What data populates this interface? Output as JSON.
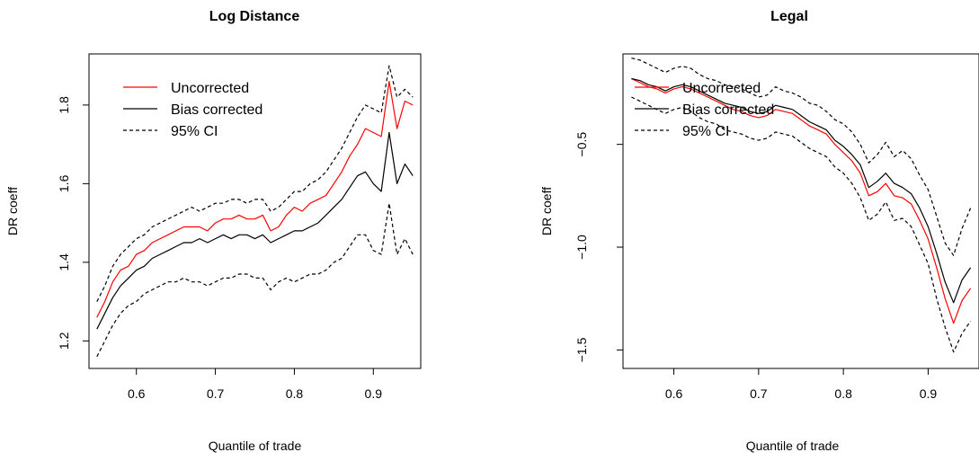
{
  "chart_data": [
    {
      "type": "line",
      "title": "Log Distance",
      "xlabel": "Quantile of trade",
      "ylabel": "DR coeff",
      "xlim": [
        0.54,
        0.96
      ],
      "ylim": [
        1.13,
        1.93
      ],
      "xticks": [
        0.6,
        0.7,
        0.8,
        0.9
      ],
      "xtick_labels": [
        "0.6",
        "0.7",
        "0.8",
        "0.9"
      ],
      "yticks": [
        1.2,
        1.4,
        1.6,
        1.8
      ],
      "ytick_labels": [
        "1.2",
        "1.4",
        "1.6",
        "1.8"
      ],
      "legend": {
        "position": "top-left",
        "entries": [
          {
            "label": "Uncorrected",
            "color": "#ff0000",
            "dash": "solid"
          },
          {
            "label": "Bias corrected",
            "color": "#000000",
            "dash": "solid"
          },
          {
            "label": "95% CI",
            "color": "#000000",
            "dash": "dashed"
          }
        ]
      },
      "series": [
        {
          "name": "Uncorrected",
          "color": "#ff0000",
          "dash": "solid",
          "x": [
            0.55,
            0.56,
            0.57,
            0.58,
            0.59,
            0.6,
            0.61,
            0.62,
            0.63,
            0.64,
            0.65,
            0.66,
            0.67,
            0.68,
            0.69,
            0.7,
            0.71,
            0.72,
            0.73,
            0.74,
            0.75,
            0.76,
            0.77,
            0.78,
            0.79,
            0.8,
            0.81,
            0.82,
            0.83,
            0.84,
            0.85,
            0.86,
            0.87,
            0.88,
            0.89,
            0.9,
            0.91,
            0.92,
            0.93,
            0.94,
            0.95
          ],
          "y": [
            1.26,
            1.3,
            1.35,
            1.38,
            1.39,
            1.42,
            1.43,
            1.45,
            1.46,
            1.47,
            1.48,
            1.49,
            1.49,
            1.49,
            1.48,
            1.5,
            1.51,
            1.51,
            1.52,
            1.51,
            1.51,
            1.52,
            1.48,
            1.49,
            1.52,
            1.54,
            1.53,
            1.55,
            1.56,
            1.57,
            1.6,
            1.63,
            1.67,
            1.7,
            1.74,
            1.73,
            1.72,
            1.86,
            1.74,
            1.81,
            1.8
          ]
        },
        {
          "name": "Bias corrected",
          "color": "#000000",
          "dash": "solid",
          "x": [
            0.55,
            0.56,
            0.57,
            0.58,
            0.59,
            0.6,
            0.61,
            0.62,
            0.63,
            0.64,
            0.65,
            0.66,
            0.67,
            0.68,
            0.69,
            0.7,
            0.71,
            0.72,
            0.73,
            0.74,
            0.75,
            0.76,
            0.77,
            0.78,
            0.79,
            0.8,
            0.81,
            0.82,
            0.83,
            0.84,
            0.85,
            0.86,
            0.87,
            0.88,
            0.89,
            0.9,
            0.91,
            0.92,
            0.93,
            0.94,
            0.95
          ],
          "y": [
            1.23,
            1.27,
            1.31,
            1.34,
            1.36,
            1.38,
            1.39,
            1.41,
            1.42,
            1.43,
            1.44,
            1.45,
            1.45,
            1.46,
            1.45,
            1.46,
            1.47,
            1.46,
            1.47,
            1.47,
            1.46,
            1.47,
            1.45,
            1.46,
            1.47,
            1.48,
            1.48,
            1.49,
            1.5,
            1.52,
            1.54,
            1.56,
            1.59,
            1.62,
            1.63,
            1.6,
            1.58,
            1.73,
            1.6,
            1.65,
            1.62
          ]
        },
        {
          "name": "95% CI",
          "color": "#000000",
          "dash": "dashed",
          "x": [
            0.55,
            0.56,
            0.57,
            0.58,
            0.59,
            0.6,
            0.61,
            0.62,
            0.63,
            0.64,
            0.65,
            0.66,
            0.67,
            0.68,
            0.69,
            0.7,
            0.71,
            0.72,
            0.73,
            0.74,
            0.75,
            0.76,
            0.77,
            0.78,
            0.79,
            0.8,
            0.81,
            0.82,
            0.83,
            0.84,
            0.85,
            0.86,
            0.87,
            0.88,
            0.89,
            0.9,
            0.91,
            0.92,
            0.93,
            0.94,
            0.95
          ],
          "y": [
            1.3,
            1.34,
            1.39,
            1.42,
            1.44,
            1.46,
            1.47,
            1.49,
            1.5,
            1.51,
            1.52,
            1.53,
            1.54,
            1.53,
            1.54,
            1.55,
            1.55,
            1.56,
            1.56,
            1.55,
            1.56,
            1.56,
            1.53,
            1.54,
            1.56,
            1.58,
            1.58,
            1.6,
            1.61,
            1.63,
            1.66,
            1.69,
            1.73,
            1.77,
            1.8,
            1.79,
            1.78,
            1.9,
            1.82,
            1.84,
            1.82
          ]
        },
        {
          "name": "95% CI",
          "color": "#000000",
          "dash": "dashed",
          "x": [
            0.55,
            0.56,
            0.57,
            0.58,
            0.59,
            0.6,
            0.61,
            0.62,
            0.63,
            0.64,
            0.65,
            0.66,
            0.67,
            0.68,
            0.69,
            0.7,
            0.71,
            0.72,
            0.73,
            0.74,
            0.75,
            0.76,
            0.77,
            0.78,
            0.79,
            0.8,
            0.81,
            0.82,
            0.83,
            0.84,
            0.85,
            0.86,
            0.87,
            0.88,
            0.89,
            0.9,
            0.91,
            0.92,
            0.93,
            0.94,
            0.95
          ],
          "y": [
            1.16,
            1.2,
            1.24,
            1.27,
            1.29,
            1.3,
            1.32,
            1.33,
            1.34,
            1.35,
            1.35,
            1.36,
            1.35,
            1.35,
            1.34,
            1.35,
            1.36,
            1.36,
            1.37,
            1.37,
            1.36,
            1.36,
            1.33,
            1.35,
            1.36,
            1.35,
            1.36,
            1.37,
            1.37,
            1.38,
            1.4,
            1.41,
            1.44,
            1.47,
            1.47,
            1.43,
            1.42,
            1.55,
            1.42,
            1.46,
            1.42
          ]
        }
      ]
    },
    {
      "type": "line",
      "title": "Legal",
      "xlabel": "Quantile of trade",
      "ylabel": "DR coeff",
      "xlim": [
        0.54,
        0.96
      ],
      "ylim": [
        -1.59,
        -0.06
      ],
      "xticks": [
        0.6,
        0.7,
        0.8,
        0.9
      ],
      "xtick_labels": [
        "0.6",
        "0.7",
        "0.8",
        "0.9"
      ],
      "yticks": [
        -0.5,
        -1.0,
        -1.5
      ],
      "ytick_labels": [
        "−0.5",
        "−1.0",
        "−1.5"
      ],
      "legend": {
        "position": "top-left",
        "entries": [
          {
            "label": "Uncorrected",
            "color": "#ff0000",
            "dash": "solid"
          },
          {
            "label": "Bias corrected",
            "color": "#000000",
            "dash": "solid"
          },
          {
            "label": "95% CI",
            "color": "#000000",
            "dash": "dashed"
          }
        ]
      },
      "series": [
        {
          "name": "Uncorrected",
          "color": "#ff0000",
          "dash": "solid",
          "x": [
            0.55,
            0.56,
            0.57,
            0.58,
            0.59,
            0.6,
            0.61,
            0.62,
            0.63,
            0.64,
            0.65,
            0.66,
            0.67,
            0.68,
            0.69,
            0.7,
            0.71,
            0.72,
            0.73,
            0.74,
            0.75,
            0.76,
            0.77,
            0.78,
            0.79,
            0.8,
            0.81,
            0.82,
            0.83,
            0.84,
            0.85,
            0.86,
            0.87,
            0.88,
            0.89,
            0.9,
            0.91,
            0.92,
            0.93,
            0.94,
            0.95
          ],
          "y": [
            -0.18,
            -0.2,
            -0.22,
            -0.23,
            -0.25,
            -0.23,
            -0.22,
            -0.23,
            -0.25,
            -0.27,
            -0.29,
            -0.31,
            -0.33,
            -0.34,
            -0.36,
            -0.37,
            -0.36,
            -0.33,
            -0.34,
            -0.35,
            -0.38,
            -0.41,
            -0.43,
            -0.45,
            -0.5,
            -0.54,
            -0.58,
            -0.64,
            -0.75,
            -0.73,
            -0.69,
            -0.75,
            -0.76,
            -0.79,
            -0.87,
            -0.96,
            -1.1,
            -1.25,
            -1.37,
            -1.26,
            -1.2
          ]
        },
        {
          "name": "Bias corrected",
          "color": "#000000",
          "dash": "solid",
          "x": [
            0.55,
            0.56,
            0.57,
            0.58,
            0.59,
            0.6,
            0.61,
            0.62,
            0.63,
            0.64,
            0.65,
            0.66,
            0.67,
            0.68,
            0.69,
            0.7,
            0.71,
            0.72,
            0.73,
            0.74,
            0.75,
            0.76,
            0.77,
            0.78,
            0.79,
            0.8,
            0.81,
            0.82,
            0.83,
            0.84,
            0.85,
            0.86,
            0.87,
            0.88,
            0.89,
            0.9,
            0.91,
            0.92,
            0.93,
            0.94,
            0.95
          ],
          "y": [
            -0.18,
            -0.19,
            -0.21,
            -0.22,
            -0.24,
            -0.22,
            -0.21,
            -0.22,
            -0.24,
            -0.26,
            -0.28,
            -0.3,
            -0.31,
            -0.32,
            -0.34,
            -0.35,
            -0.34,
            -0.31,
            -0.32,
            -0.33,
            -0.36,
            -0.39,
            -0.41,
            -0.43,
            -0.48,
            -0.51,
            -0.55,
            -0.6,
            -0.71,
            -0.68,
            -0.64,
            -0.69,
            -0.71,
            -0.74,
            -0.81,
            -0.9,
            -1.03,
            -1.17,
            -1.27,
            -1.16,
            -1.1
          ]
        },
        {
          "name": "95% CI",
          "color": "#000000",
          "dash": "dashed",
          "x": [
            0.55,
            0.56,
            0.57,
            0.58,
            0.59,
            0.6,
            0.61,
            0.62,
            0.63,
            0.64,
            0.65,
            0.66,
            0.67,
            0.68,
            0.69,
            0.7,
            0.71,
            0.72,
            0.73,
            0.74,
            0.75,
            0.76,
            0.77,
            0.78,
            0.79,
            0.8,
            0.81,
            0.82,
            0.83,
            0.84,
            0.85,
            0.86,
            0.87,
            0.88,
            0.89,
            0.9,
            0.91,
            0.92,
            0.93,
            0.94,
            0.95
          ],
          "y": [
            -0.08,
            -0.09,
            -0.11,
            -0.13,
            -0.15,
            -0.13,
            -0.12,
            -0.13,
            -0.16,
            -0.18,
            -0.19,
            -0.21,
            -0.22,
            -0.23,
            -0.25,
            -0.27,
            -0.26,
            -0.22,
            -0.24,
            -0.25,
            -0.27,
            -0.3,
            -0.31,
            -0.34,
            -0.38,
            -0.4,
            -0.44,
            -0.5,
            -0.59,
            -0.55,
            -0.49,
            -0.56,
            -0.53,
            -0.57,
            -0.65,
            -0.72,
            -0.85,
            -0.98,
            -1.04,
            -0.91,
            -0.81
          ]
        },
        {
          "name": "95% CI",
          "color": "#000000",
          "dash": "dashed",
          "x": [
            0.55,
            0.56,
            0.57,
            0.58,
            0.59,
            0.6,
            0.61,
            0.62,
            0.63,
            0.64,
            0.65,
            0.66,
            0.67,
            0.68,
            0.69,
            0.7,
            0.71,
            0.72,
            0.73,
            0.74,
            0.75,
            0.76,
            0.77,
            0.78,
            0.79,
            0.8,
            0.81,
            0.82,
            0.83,
            0.84,
            0.85,
            0.86,
            0.87,
            0.88,
            0.89,
            0.9,
            0.91,
            0.92,
            0.93,
            0.94,
            0.95
          ],
          "y": [
            -0.27,
            -0.29,
            -0.31,
            -0.33,
            -0.35,
            -0.33,
            -0.32,
            -0.34,
            -0.37,
            -0.39,
            -0.4,
            -0.43,
            -0.44,
            -0.45,
            -0.47,
            -0.48,
            -0.47,
            -0.44,
            -0.45,
            -0.46,
            -0.49,
            -0.52,
            -0.54,
            -0.56,
            -0.61,
            -0.64,
            -0.69,
            -0.76,
            -0.87,
            -0.84,
            -0.78,
            -0.87,
            -0.86,
            -0.9,
            -0.99,
            -1.08,
            -1.25,
            -1.39,
            -1.51,
            -1.42,
            -1.36
          ]
        }
      ]
    }
  ]
}
